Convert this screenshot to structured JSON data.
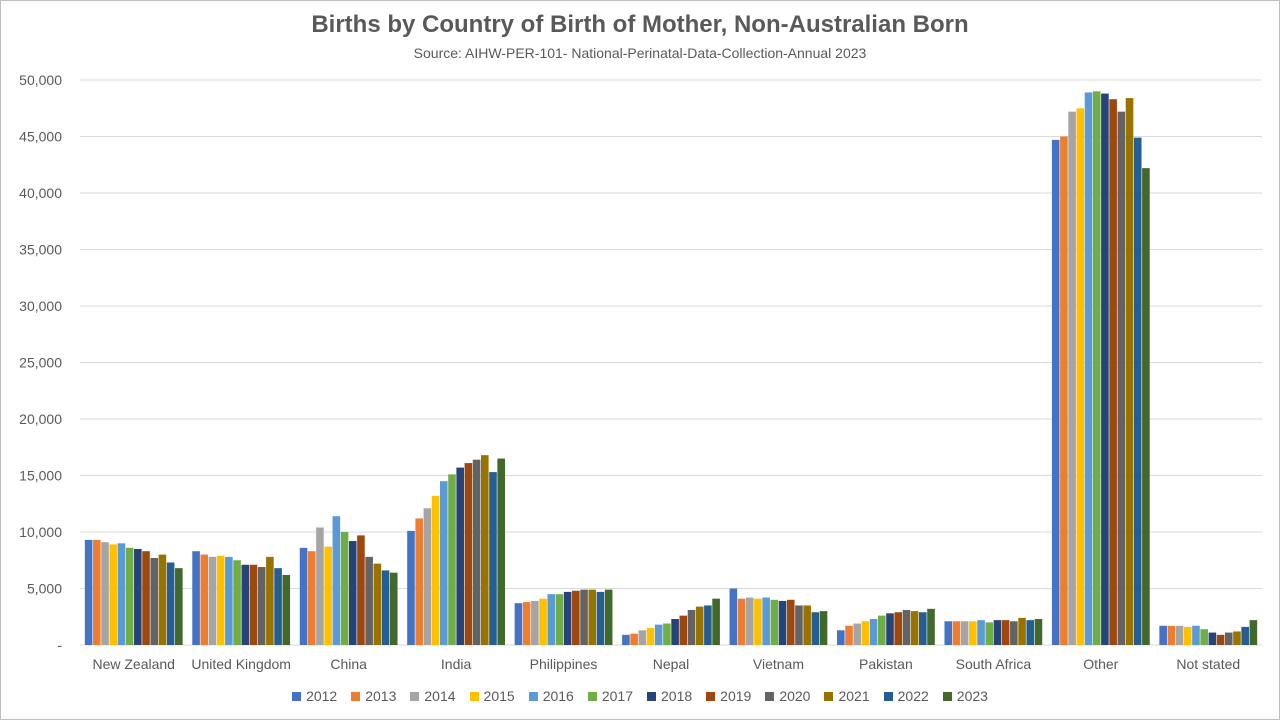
{
  "chart_data": {
    "type": "bar",
    "title": "Births by Country of Birth of Mother, Non-Australian Born",
    "subtitle": "Source: AIHW-PER-101- National-Perinatal-Data-Collection-Annual 2023",
    "xlabel": "",
    "ylabel": "",
    "ylim": [
      0,
      50000
    ],
    "ytick_step": 5000,
    "ytick_labels": [
      "-",
      "5,000",
      "10,000",
      "15,000",
      "20,000",
      "25,000",
      "30,000",
      "35,000",
      "40,000",
      "45,000",
      "50,000"
    ],
    "grid": true,
    "legend_position": "bottom",
    "categories": [
      "New Zealand",
      "United Kingdom",
      "China",
      "India",
      "Philippines",
      "Nepal",
      "Vietnam",
      "Pakistan",
      "South Africa",
      "Other",
      "Not stated"
    ],
    "series": [
      {
        "name": "2012",
        "color": "#4472C4",
        "values": [
          9300,
          8300,
          8600,
          10100,
          3700,
          900,
          5000,
          1300,
          2100,
          44700,
          1700
        ]
      },
      {
        "name": "2013",
        "color": "#ED7D31",
        "values": [
          9300,
          8000,
          8300,
          11200,
          3800,
          1000,
          4100,
          1700,
          2100,
          45000,
          1700
        ]
      },
      {
        "name": "2014",
        "color": "#A5A5A5",
        "values": [
          9100,
          7800,
          10400,
          12100,
          3900,
          1300,
          4200,
          1900,
          2100,
          47200,
          1700
        ]
      },
      {
        "name": "2015",
        "color": "#FFC000",
        "values": [
          8900,
          7900,
          8700,
          13200,
          4100,
          1500,
          4100,
          2100,
          2100,
          47500,
          1600
        ]
      },
      {
        "name": "2016",
        "color": "#5B9BD5",
        "values": [
          9000,
          7800,
          11400,
          14500,
          4500,
          1800,
          4200,
          2300,
          2200,
          48900,
          1700
        ]
      },
      {
        "name": "2017",
        "color": "#70AD47",
        "values": [
          8600,
          7500,
          10000,
          15100,
          4500,
          1900,
          4000,
          2600,
          2000,
          49000,
          1400
        ]
      },
      {
        "name": "2018",
        "color": "#264478",
        "values": [
          8500,
          7100,
          9200,
          15700,
          4700,
          2300,
          3900,
          2800,
          2200,
          48800,
          1100
        ]
      },
      {
        "name": "2019",
        "color": "#9E480E",
        "values": [
          8300,
          7100,
          9700,
          16100,
          4800,
          2600,
          4000,
          2900,
          2200,
          48300,
          900
        ]
      },
      {
        "name": "2020",
        "color": "#636363",
        "values": [
          7700,
          6900,
          7800,
          16400,
          4900,
          3100,
          3500,
          3100,
          2100,
          47200,
          1100
        ]
      },
      {
        "name": "2021",
        "color": "#997300",
        "values": [
          8000,
          7800,
          7200,
          16800,
          4900,
          3400,
          3500,
          3000,
          2400,
          48400,
          1200
        ]
      },
      {
        "name": "2022",
        "color": "#255E91",
        "values": [
          7300,
          6800,
          6600,
          15300,
          4700,
          3500,
          2900,
          2900,
          2200,
          44900,
          1600
        ]
      },
      {
        "name": "2023",
        "color": "#43682B",
        "values": [
          6800,
          6200,
          6400,
          16500,
          4900,
          4100,
          3000,
          3200,
          2300,
          42200,
          2200
        ]
      }
    ]
  }
}
